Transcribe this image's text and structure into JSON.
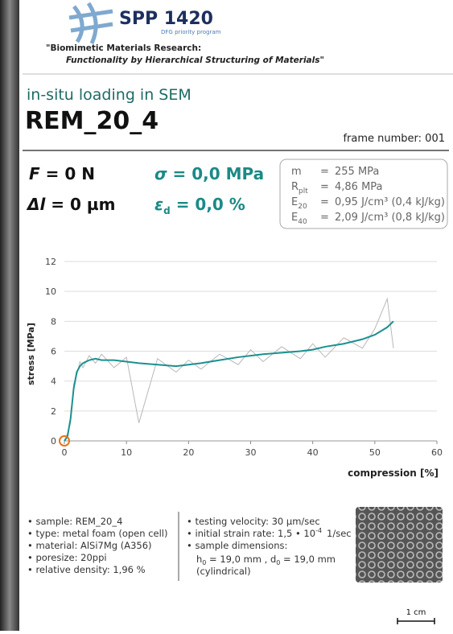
{
  "header": {
    "title": "SPP 1420",
    "subtitle": "DFG priority program",
    "line1": "\"Biomimetic Materials Research:",
    "line2": "Functionality by Hierarchical Structuring of Materials\""
  },
  "test": {
    "label": "in-situ loading in SEM",
    "name": "REM_20_4",
    "frame": "frame number: 001"
  },
  "readouts": {
    "force": {
      "symbol": "F",
      "text": " = 0 N"
    },
    "elongation": {
      "symbol": "Δl",
      "text": " = 0 µm"
    },
    "stress": {
      "symbol": "σ",
      "text": " = 0,0 MPa"
    },
    "strain": {
      "symbol": "ε",
      "sub": "d",
      "text": " = 0,0 %"
    }
  },
  "properties": [
    {
      "name": "m",
      "sub": "",
      "eq": "=",
      "value": "255 MPa"
    },
    {
      "name": "R",
      "sub": "plt",
      "eq": "=",
      "value": "4,86 MPa"
    },
    {
      "name": "E",
      "sub": "20",
      "eq": "=",
      "value": "0,95 J/cm³  (0,4 kJ/kg)"
    },
    {
      "name": "E",
      "sub": "40",
      "eq": "=",
      "value": "2,09 J/cm³  (0,8 kJ/kg)"
    }
  ],
  "chart_data": {
    "type": "line",
    "y_label": "stress [MPa]",
    "x_label": "compression [%]",
    "x": [
      0,
      0.5,
      1,
      1.5,
      2,
      2.5,
      3,
      4,
      5,
      6,
      8,
      10,
      12,
      15,
      18,
      20,
      22,
      25,
      28,
      30,
      32,
      35,
      38,
      40,
      42,
      45,
      48,
      50,
      52,
      53
    ],
    "series": [
      {
        "color": "#b8b8b8",
        "values": [
          0,
          0.5,
          1.2,
          3.8,
          4.4,
          5.3,
          4.9,
          5.7,
          5.2,
          5.8,
          4.9,
          5.6,
          1.2,
          5.5,
          4.6,
          5.4,
          4.8,
          5.8,
          5.1,
          6.1,
          5.3,
          6.3,
          5.5,
          6.5,
          5.6,
          6.9,
          6.2,
          7.5,
          9.5,
          6.2
        ]
      },
      {
        "color": "#1b9090",
        "values": [
          0,
          0.3,
          1.5,
          3.5,
          4.6,
          5.0,
          5.2,
          5.4,
          5.5,
          5.4,
          5.4,
          5.3,
          5.2,
          5.1,
          5.0,
          5.1,
          5.2,
          5.4,
          5.6,
          5.7,
          5.8,
          5.9,
          6.0,
          6.1,
          6.3,
          6.5,
          6.8,
          7.1,
          7.6,
          8.0
        ]
      }
    ],
    "marker": {
      "x": 0,
      "y": 0,
      "color": "#e8731c"
    },
    "xlim": [
      0,
      60
    ],
    "ylim": [
      0,
      12
    ],
    "xticks": [
      0,
      10,
      20,
      30,
      40,
      50,
      60
    ],
    "yticks": [
      0,
      2,
      4,
      6,
      8,
      10,
      12
    ],
    "grid": true
  },
  "left_list": [
    "sample: REM_20_4",
    "type: metal foam (open cell)",
    "material: AlSi7Mg (A356)",
    "poresize: 20ppi",
    "relative density: 1,96 %"
  ],
  "right_list": {
    "velocity": "testing velocity: 30 µm/sec",
    "rate": {
      "text": "initial strain rate: 1,5 • 10",
      "sup": "-4",
      "unit": "1/sec"
    },
    "dims": "sample dimensions:",
    "h": "h",
    "h_sub": "0",
    "h_val": " = 19,0 mm , d",
    "d_sub": "0",
    "d_val": " = 19,0 mm",
    "shape": "(cylindrical)"
  },
  "scale": "1 cm"
}
